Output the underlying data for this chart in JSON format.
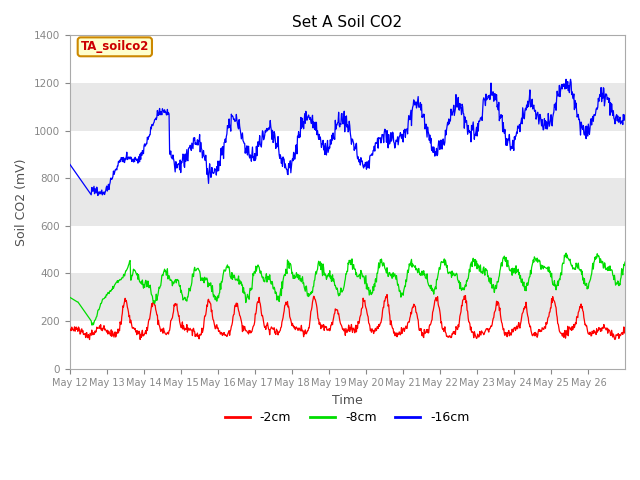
{
  "title": "Set A Soil CO2",
  "ylabel": "Soil CO2 (mV)",
  "xlabel": "Time",
  "legend_label": "TA_soilco2",
  "series_labels": [
    "-2cm",
    "-8cm",
    "-16cm"
  ],
  "series_colors": [
    "#ff0000",
    "#00dd00",
    "#0000ff"
  ],
  "ylim": [
    0,
    1400
  ],
  "bg_inner": "#e8e8e8",
  "band_ranges": [
    [
      0,
      200
    ],
    [
      400,
      600
    ],
    [
      800,
      1000
    ],
    [
      1200,
      1400
    ]
  ],
  "title_fontsize": 11,
  "axis_label_fontsize": 9,
  "tick_label_color": "#888888",
  "legend_box_bg": "#ffffcc",
  "legend_box_edge": "#cc8800",
  "yticks": [
    0,
    200,
    400,
    600,
    800,
    1000,
    1200,
    1400
  ]
}
